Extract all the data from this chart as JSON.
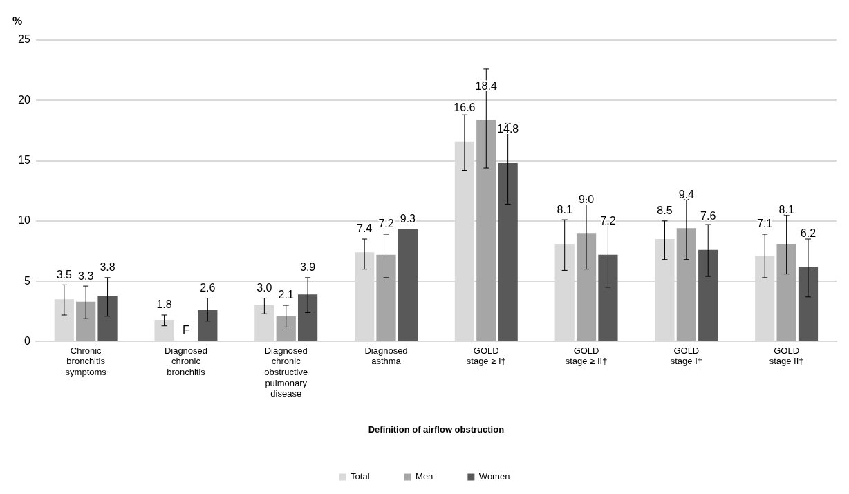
{
  "chart_data": {
    "type": "bar",
    "ylabel": "%",
    "xlabel": "Definition of airflow obstruction",
    "categories": [
      "Chronic bronchitis symptoms",
      "Diagnosed chronic bronchitis",
      "Diagnosed chronic obstructive pulmonary disease",
      "Diagnosed asthma",
      "GOLD stage ≥ I†",
      "GOLD stage ≥ II†",
      "GOLD stage I†",
      "GOLD stage II†"
    ],
    "series": [
      {
        "name": "Total",
        "color": "#d9d9d9",
        "values": [
          3.5,
          1.8,
          3.0,
          7.4,
          16.6,
          8.1,
          8.5,
          7.1
        ],
        "errors": [
          [
            2.2,
            4.7
          ],
          [
            1.3,
            2.2
          ],
          [
            2.3,
            3.6
          ],
          [
            6.0,
            8.5
          ],
          [
            14.2,
            18.8
          ],
          [
            5.9,
            10.1
          ],
          [
            6.8,
            10.0
          ],
          [
            5.3,
            8.9
          ]
        ],
        "value_labels": [
          "3.5",
          "1.8",
          "3.0",
          "7.4",
          "16.6",
          "8.1",
          "8.5",
          "7.1"
        ]
      },
      {
        "name": "Men",
        "color": "#a6a6a6",
        "values": [
          3.3,
          null,
          2.1,
          7.2,
          18.4,
          9.0,
          9.4,
          8.1
        ],
        "errors": [
          [
            1.9,
            4.6
          ],
          null,
          [
            1.2,
            3.0
          ],
          [
            5.3,
            8.9
          ],
          [
            14.4,
            22.6
          ],
          [
            6.0,
            11.8
          ],
          [
            6.8,
            11.8
          ],
          [
            5.6,
            10.5
          ]
        ],
        "value_labels": [
          "3.3",
          "F",
          "2.1",
          "7.2",
          "18.4",
          "9.0",
          "9.4",
          "8.1"
        ]
      },
      {
        "name": "Women",
        "color": "#595959",
        "values": [
          3.8,
          2.6,
          3.9,
          9.3,
          14.8,
          7.2,
          7.6,
          6.2
        ],
        "errors": [
          [
            2.1,
            5.3
          ],
          [
            1.7,
            3.6
          ],
          [
            2.4,
            5.3
          ],
          null,
          [
            11.4,
            18.1
          ],
          [
            4.5,
            9.7
          ],
          [
            5.4,
            9.7
          ],
          [
            3.7,
            8.5
          ]
        ],
        "value_labels": [
          "3.8",
          "2.6",
          "3.9",
          "9.3",
          "14.8",
          "7.2",
          "7.6",
          "6.2"
        ]
      }
    ],
    "ylim": [
      0,
      25
    ],
    "yticks": [
      0,
      5,
      10,
      15,
      20,
      25
    ],
    "grid": "y",
    "legend": "bottom"
  }
}
